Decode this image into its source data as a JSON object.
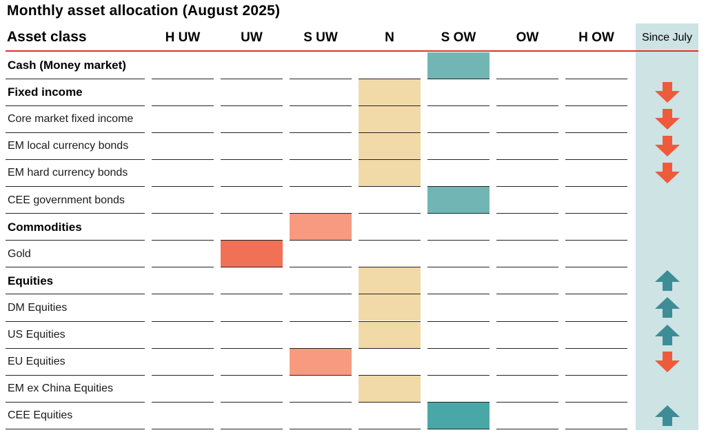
{
  "title": "Monthly asset allocation (August 2025)",
  "chart_data": {
    "type": "table",
    "header": {
      "asset_class": "Asset class",
      "columns": [
        "H UW",
        "UW",
        "S UW",
        "N",
        "S OW",
        "OW",
        "H OW"
      ],
      "since": "Since July"
    },
    "colors": {
      "N": "#f2d9a8",
      "S OW": "#72b5b5",
      "S OW strong": "#4aa7a7",
      "S UW": "#f79a80",
      "UW": "#f07155",
      "arrow_up": "#3e8c96",
      "arrow_down": "#ef5a3b",
      "since_bg": "#cde3e4",
      "rule": "#e1312b"
    },
    "rows": [
      {
        "label": "Cash (Money market)",
        "category": true,
        "position": "S OW",
        "change": ""
      },
      {
        "label": "Fixed income",
        "category": true,
        "position": "N",
        "change": "down"
      },
      {
        "label": "Core market fixed income",
        "category": false,
        "position": "N",
        "change": "down"
      },
      {
        "label": "EM local currency bonds",
        "category": false,
        "position": "N",
        "change": "down"
      },
      {
        "label": "EM hard currency bonds",
        "category": false,
        "position": "N",
        "change": "down"
      },
      {
        "label": "CEE government bonds",
        "category": false,
        "position": "S OW",
        "change": ""
      },
      {
        "label": "Commodities",
        "category": true,
        "position": "S UW",
        "change": ""
      },
      {
        "label": "Gold",
        "category": false,
        "position": "UW",
        "change": ""
      },
      {
        "label": "Equities",
        "category": true,
        "position": "N",
        "change": "up"
      },
      {
        "label": "DM Equities",
        "category": false,
        "position": "N",
        "change": "up"
      },
      {
        "label": "US Equities",
        "category": false,
        "position": "N",
        "change": "up"
      },
      {
        "label": "EU Equities",
        "category": false,
        "position": "S UW",
        "change": "down"
      },
      {
        "label": "EM ex China Equities",
        "category": false,
        "position": "N",
        "change": ""
      },
      {
        "label": "CEE Equities",
        "category": false,
        "position": "S OW",
        "change": "up"
      }
    ]
  }
}
